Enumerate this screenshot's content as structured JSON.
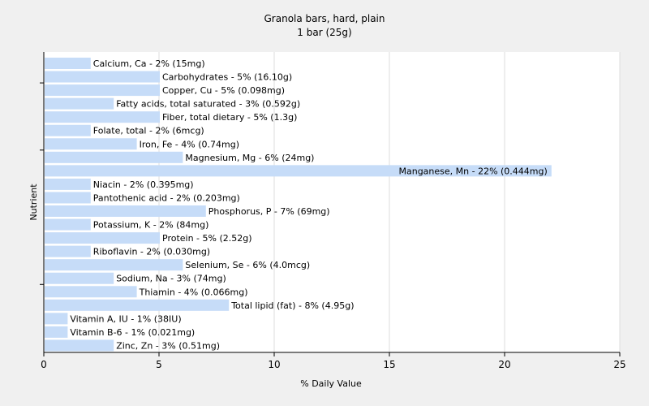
{
  "chart_data": {
    "type": "bar",
    "orientation": "horizontal",
    "title": "Granola bars, hard, plain",
    "subtitle": "1 bar (25g)",
    "xlabel": "% Daily Value",
    "ylabel": "Nutrient",
    "xlim": [
      0,
      25
    ],
    "xticks": [
      0,
      5,
      10,
      15,
      20,
      25
    ],
    "grid": true,
    "bar_color": "#c6dcf8",
    "categories": [
      "Calcium, Ca",
      "Carbohydrates",
      "Copper, Cu",
      "Fatty acids, total saturated",
      "Fiber, total dietary",
      "Folate, total",
      "Iron, Fe",
      "Magnesium, Mg",
      "Manganese, Mn",
      "Niacin",
      "Pantothenic acid",
      "Phosphorus, P",
      "Potassium, K",
      "Protein",
      "Riboflavin",
      "Selenium, Se",
      "Sodium, Na",
      "Thiamin",
      "Total lipid (fat)",
      "Vitamin A, IU",
      "Vitamin B-6",
      "Zinc, Zn"
    ],
    "values": [
      2,
      5,
      5,
      3,
      5,
      2,
      4,
      6,
      22,
      2,
      2,
      7,
      2,
      5,
      2,
      6,
      3,
      4,
      8,
      1,
      1,
      3
    ],
    "labels": [
      "Calcium, Ca - 2% (15mg)",
      "Carbohydrates - 5% (16.10g)",
      "Copper, Cu - 5% (0.098mg)",
      "Fatty acids, total saturated - 3% (0.592g)",
      "Fiber, total dietary - 5% (1.3g)",
      "Folate, total - 2% (6mcg)",
      "Iron, Fe - 4% (0.74mg)",
      "Magnesium, Mg - 6% (24mg)",
      "Manganese, Mn - 22% (0.444mg)",
      "Niacin - 2% (0.395mg)",
      "Pantothenic acid - 2% (0.203mg)",
      "Phosphorus, P - 7% (69mg)",
      "Potassium, K - 2% (84mg)",
      "Protein - 5% (2.52g)",
      "Riboflavin - 2% (0.030mg)",
      "Selenium, Se - 6% (4.0mcg)",
      "Sodium, Na - 3% (74mg)",
      "Thiamin - 4% (0.066mg)",
      "Total lipid (fat) - 8% (4.95g)",
      "Vitamin A, IU - 1% (38IU)",
      "Vitamin B-6 - 1% (0.021mg)",
      "Zinc, Zn - 3% (0.51mg)"
    ]
  }
}
